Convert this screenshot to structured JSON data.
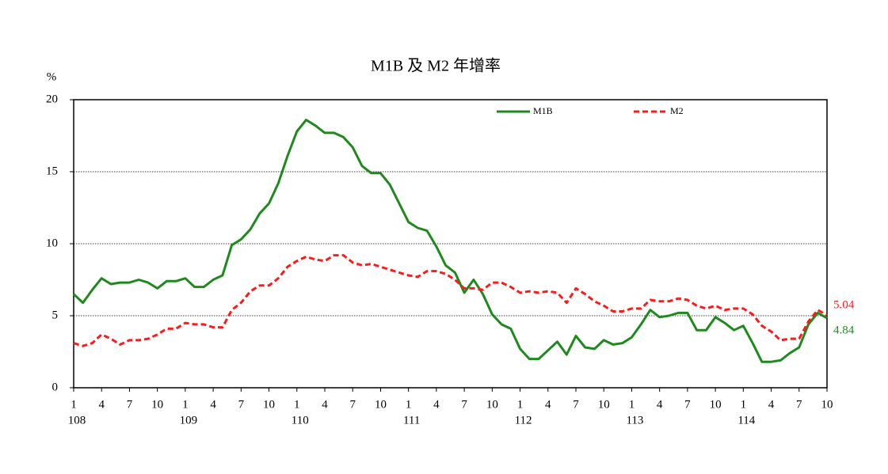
{
  "chart_data": {
    "type": "line",
    "title": "M1B 及 M2 年增率",
    "y_label": "%",
    "ylim": [
      0,
      20
    ],
    "yticks": [
      0,
      5,
      10,
      15,
      20
    ],
    "grid": true,
    "legend": "top",
    "categories": [
      "1",
      null,
      null,
      "4",
      null,
      null,
      "7",
      null,
      null,
      "10",
      null,
      null,
      "1",
      null,
      null,
      "4",
      null,
      null,
      "7",
      null,
      null,
      "10",
      null,
      null,
      "1",
      null,
      null,
      "4",
      null,
      null,
      "7",
      null,
      null,
      "10",
      null,
      null,
      "1",
      null,
      null,
      "4",
      null,
      null,
      "7",
      null,
      null,
      "10",
      null,
      null,
      "1",
      null,
      null,
      "4",
      null,
      null,
      "7",
      null,
      null,
      "10",
      null,
      null,
      "1",
      null,
      null,
      "4",
      null,
      null,
      "7",
      null,
      null,
      "10",
      null,
      null,
      "1",
      null,
      null,
      "4",
      null,
      null,
      "7",
      null,
      null,
      "10"
    ],
    "category_years": [
      "108",
      null,
      null,
      null,
      null,
      null,
      null,
      null,
      null,
      null,
      null,
      null,
      "109",
      null,
      null,
      null,
      null,
      null,
      null,
      null,
      null,
      null,
      null,
      null,
      "110",
      null,
      null,
      null,
      null,
      null,
      null,
      null,
      null,
      null,
      null,
      null,
      "111",
      null,
      null,
      null,
      null,
      null,
      null,
      null,
      null,
      null,
      null,
      null,
      "112",
      null,
      null,
      null,
      null,
      null,
      null,
      null,
      null,
      null,
      null,
      null,
      "113",
      null,
      null,
      null,
      null,
      null,
      null,
      null,
      null,
      null,
      null,
      null,
      "114",
      null,
      null,
      null,
      null,
      null,
      null,
      null,
      null,
      null
    ],
    "series": [
      {
        "name": "M1B",
        "color": "#1e8a1e",
        "dash": false,
        "values": [
          6.5,
          5.9,
          6.8,
          7.6,
          7.2,
          7.3,
          7.3,
          7.5,
          7.3,
          6.9,
          7.4,
          7.4,
          7.6,
          7.0,
          7.0,
          7.5,
          7.8,
          9.9,
          10.3,
          11.0,
          12.1,
          12.8,
          14.2,
          16.1,
          17.8,
          18.6,
          18.2,
          17.7,
          17.7,
          17.4,
          16.7,
          15.4,
          14.9,
          14.9,
          14.1,
          12.8,
          11.5,
          11.1,
          10.9,
          9.8,
          8.5,
          8.0,
          6.6,
          7.5,
          6.5,
          5.1,
          4.4,
          4.1,
          2.7,
          2.0,
          2.0,
          2.6,
          3.2,
          2.3,
          3.6,
          2.8,
          2.7,
          3.3,
          3.0,
          3.1,
          3.5,
          4.4,
          5.4,
          4.9,
          5.0,
          5.2,
          5.2,
          4.0,
          4.0,
          4.9,
          4.5,
          4.0,
          4.3,
          3.1,
          1.8,
          1.8,
          1.9,
          2.4,
          2.8,
          4.4,
          5.2,
          4.84
        ]
      },
      {
        "name": "M2",
        "color": "#ff1a1a",
        "dash": true,
        "values": [
          3.1,
          2.9,
          3.1,
          3.7,
          3.4,
          3.0,
          3.3,
          3.3,
          3.4,
          3.7,
          4.1,
          4.1,
          4.5,
          4.4,
          4.4,
          4.2,
          4.2,
          5.4,
          5.9,
          6.7,
          7.1,
          7.1,
          7.6,
          8.4,
          8.8,
          9.1,
          8.9,
          8.8,
          9.2,
          9.2,
          8.7,
          8.5,
          8.6,
          8.4,
          8.2,
          8.0,
          7.8,
          7.7,
          8.1,
          8.1,
          7.9,
          7.5,
          6.9,
          6.9,
          6.8,
          7.3,
          7.3,
          7.0,
          6.6,
          6.7,
          6.6,
          6.7,
          6.6,
          5.9,
          6.9,
          6.5,
          6.0,
          5.7,
          5.3,
          5.3,
          5.5,
          5.5,
          6.1,
          6.0,
          6.0,
          6.2,
          6.1,
          5.7,
          5.5,
          5.7,
          5.4,
          5.5,
          5.5,
          5.1,
          4.3,
          3.9,
          3.3,
          3.4,
          3.4,
          4.6,
          5.4,
          5.04
        ]
      }
    ]
  }
}
